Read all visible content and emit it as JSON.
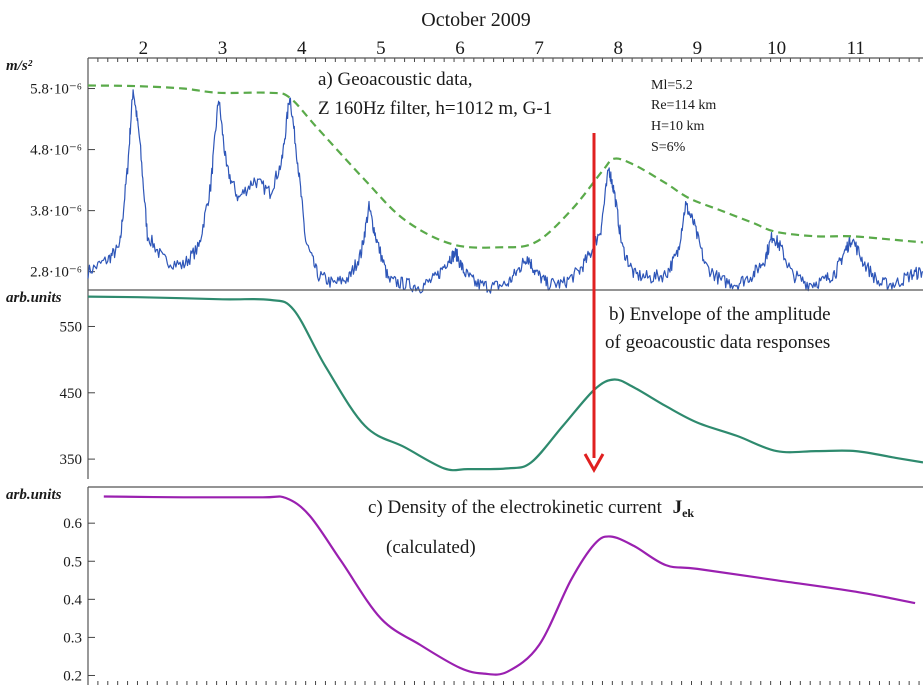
{
  "figure": {
    "top_axis_title": "October 2009",
    "x_ticks": [
      "2",
      "3",
      "4",
      "5",
      "6",
      "7",
      "8",
      "9",
      "10",
      "11"
    ],
    "arrow_color": "#e02020"
  },
  "chart_data": [
    {
      "type": "line",
      "id": "panel_a",
      "annotation": [
        "a) Geoacoustic data,",
        "Z 160Hz filter, h=1012 m, G-1"
      ],
      "event": [
        "Ml=5.2",
        "Re=114 km",
        "H=10 km",
        "S=6%"
      ],
      "ylabel": "m/s²",
      "y_ticks": [
        {
          "value": 2.8,
          "label": "2.8·10⁻⁶"
        },
        {
          "value": 3.8,
          "label": "3.8·10⁻⁶"
        },
        {
          "value": 4.8,
          "label": "4.8·10⁻⁶"
        },
        {
          "value": 5.8,
          "label": "5.8·10⁻⁶"
        }
      ],
      "ylim": [
        2.5,
        6.3
      ],
      "y_scale_factor": "1e-6",
      "xlim": [
        1.3,
        11.85
      ],
      "series": [
        {
          "color": "#2e56b8",
          "style": "solid-noisy",
          "x": [
            1.3,
            1.55,
            1.7,
            1.8,
            1.87,
            1.95,
            2.05,
            2.25,
            2.5,
            2.7,
            2.85,
            2.95,
            3.05,
            3.2,
            3.4,
            3.6,
            3.75,
            3.85,
            3.95,
            4.05,
            4.2,
            4.4,
            4.6,
            4.75,
            4.85,
            4.95,
            5.1,
            5.3,
            5.5,
            5.7,
            5.85,
            5.95,
            6.05,
            6.2,
            6.4,
            6.6,
            6.75,
            6.85,
            6.95,
            7.1,
            7.3,
            7.5,
            7.65,
            7.78,
            7.88,
            7.95,
            8.05,
            8.2,
            8.4,
            8.6,
            8.75,
            8.85,
            8.95,
            9.1,
            9.3,
            9.5,
            9.7,
            9.85,
            9.95,
            10.05,
            10.2,
            10.4,
            10.6,
            10.75,
            10.85,
            10.95,
            11.1,
            11.3,
            11.5,
            11.7,
            11.85
          ],
          "y": [
            2.8,
            3.0,
            3.2,
            4.5,
            5.8,
            5.0,
            3.4,
            3.0,
            2.9,
            3.2,
            4.2,
            5.65,
            4.5,
            4.0,
            4.3,
            4.1,
            4.6,
            5.7,
            4.6,
            3.3,
            2.75,
            2.6,
            2.7,
            3.1,
            3.85,
            3.3,
            2.65,
            2.6,
            2.55,
            2.7,
            3.0,
            3.1,
            2.8,
            2.6,
            2.55,
            2.6,
            2.85,
            3.05,
            2.8,
            2.6,
            2.6,
            2.8,
            3.1,
            3.5,
            4.5,
            4.1,
            3.2,
            2.75,
            2.7,
            2.75,
            3.1,
            3.9,
            3.6,
            2.9,
            2.65,
            2.6,
            2.75,
            3.0,
            3.4,
            3.2,
            2.75,
            2.6,
            2.65,
            2.8,
            3.1,
            3.35,
            2.95,
            2.6,
            2.6,
            2.75,
            2.8
          ]
        },
        {
          "color": "#5aaa4a",
          "style": "dashed",
          "x": [
            1.3,
            1.9,
            2.5,
            2.95,
            3.6,
            3.85,
            4.2,
            4.8,
            5.3,
            5.9,
            6.5,
            6.95,
            7.4,
            7.8,
            7.95,
            8.2,
            8.6,
            8.9,
            9.3,
            9.7,
            10.0,
            10.5,
            10.95,
            11.5,
            11.85
          ],
          "y": [
            5.85,
            5.84,
            5.8,
            5.73,
            5.73,
            5.65,
            5.15,
            4.3,
            3.65,
            3.25,
            3.2,
            3.28,
            3.8,
            4.45,
            4.65,
            4.55,
            4.25,
            4.0,
            3.8,
            3.6,
            3.45,
            3.38,
            3.38,
            3.32,
            3.28
          ]
        }
      ]
    },
    {
      "type": "line",
      "id": "panel_b",
      "annotation": [
        "b) Envelope of the amplitude",
        "of geoacoustic data responses"
      ],
      "ylabel": "arb.units",
      "y_ticks": [
        {
          "value": 350,
          "label": "350"
        },
        {
          "value": 450,
          "label": "450"
        },
        {
          "value": 550,
          "label": "550"
        }
      ],
      "ylim": [
        320,
        605
      ],
      "xlim": [
        1.3,
        11.85
      ],
      "series": [
        {
          "color": "#2e8a6e",
          "style": "solid",
          "x": [
            1.3,
            2.0,
            3.0,
            3.6,
            3.9,
            4.3,
            4.8,
            5.3,
            5.8,
            6.1,
            6.6,
            6.9,
            7.3,
            7.7,
            7.95,
            8.2,
            8.6,
            9.0,
            9.5,
            10.0,
            10.5,
            11.0,
            11.5,
            11.85
          ],
          "y": [
            595,
            594,
            591,
            590,
            575,
            490,
            400,
            368,
            336,
            335,
            336,
            345,
            400,
            455,
            470,
            458,
            430,
            405,
            385,
            362,
            362,
            362,
            352,
            345
          ]
        }
      ]
    },
    {
      "type": "line",
      "id": "panel_c",
      "annotation": [
        "c) Density of the electrokinetic current",
        "(calculated)"
      ],
      "annotation_symbol": "J",
      "annotation_subscript": "ek",
      "ylabel": "arb.units",
      "y_ticks": [
        {
          "value": 0.2,
          "label": "0.2"
        },
        {
          "value": 0.3,
          "label": "0.3"
        },
        {
          "value": 0.4,
          "label": "0.4"
        },
        {
          "value": 0.5,
          "label": "0.5"
        },
        {
          "value": 0.6,
          "label": "0.6"
        }
      ],
      "ylim": [
        0.175,
        0.695
      ],
      "xlim": [
        1.3,
        11.85
      ],
      "series": [
        {
          "color": "#9a20b0",
          "style": "solid",
          "x": [
            1.5,
            2.5,
            3.5,
            3.8,
            4.1,
            4.5,
            5.0,
            5.5,
            6.0,
            6.3,
            6.6,
            7.0,
            7.4,
            7.7,
            7.9,
            8.2,
            8.6,
            9.0,
            10.0,
            11.0,
            11.75
          ],
          "y": [
            0.67,
            0.668,
            0.668,
            0.666,
            0.62,
            0.5,
            0.35,
            0.28,
            0.22,
            0.205,
            0.21,
            0.28,
            0.45,
            0.545,
            0.565,
            0.54,
            0.49,
            0.48,
            0.45,
            0.42,
            0.39
          ]
        }
      ]
    }
  ]
}
